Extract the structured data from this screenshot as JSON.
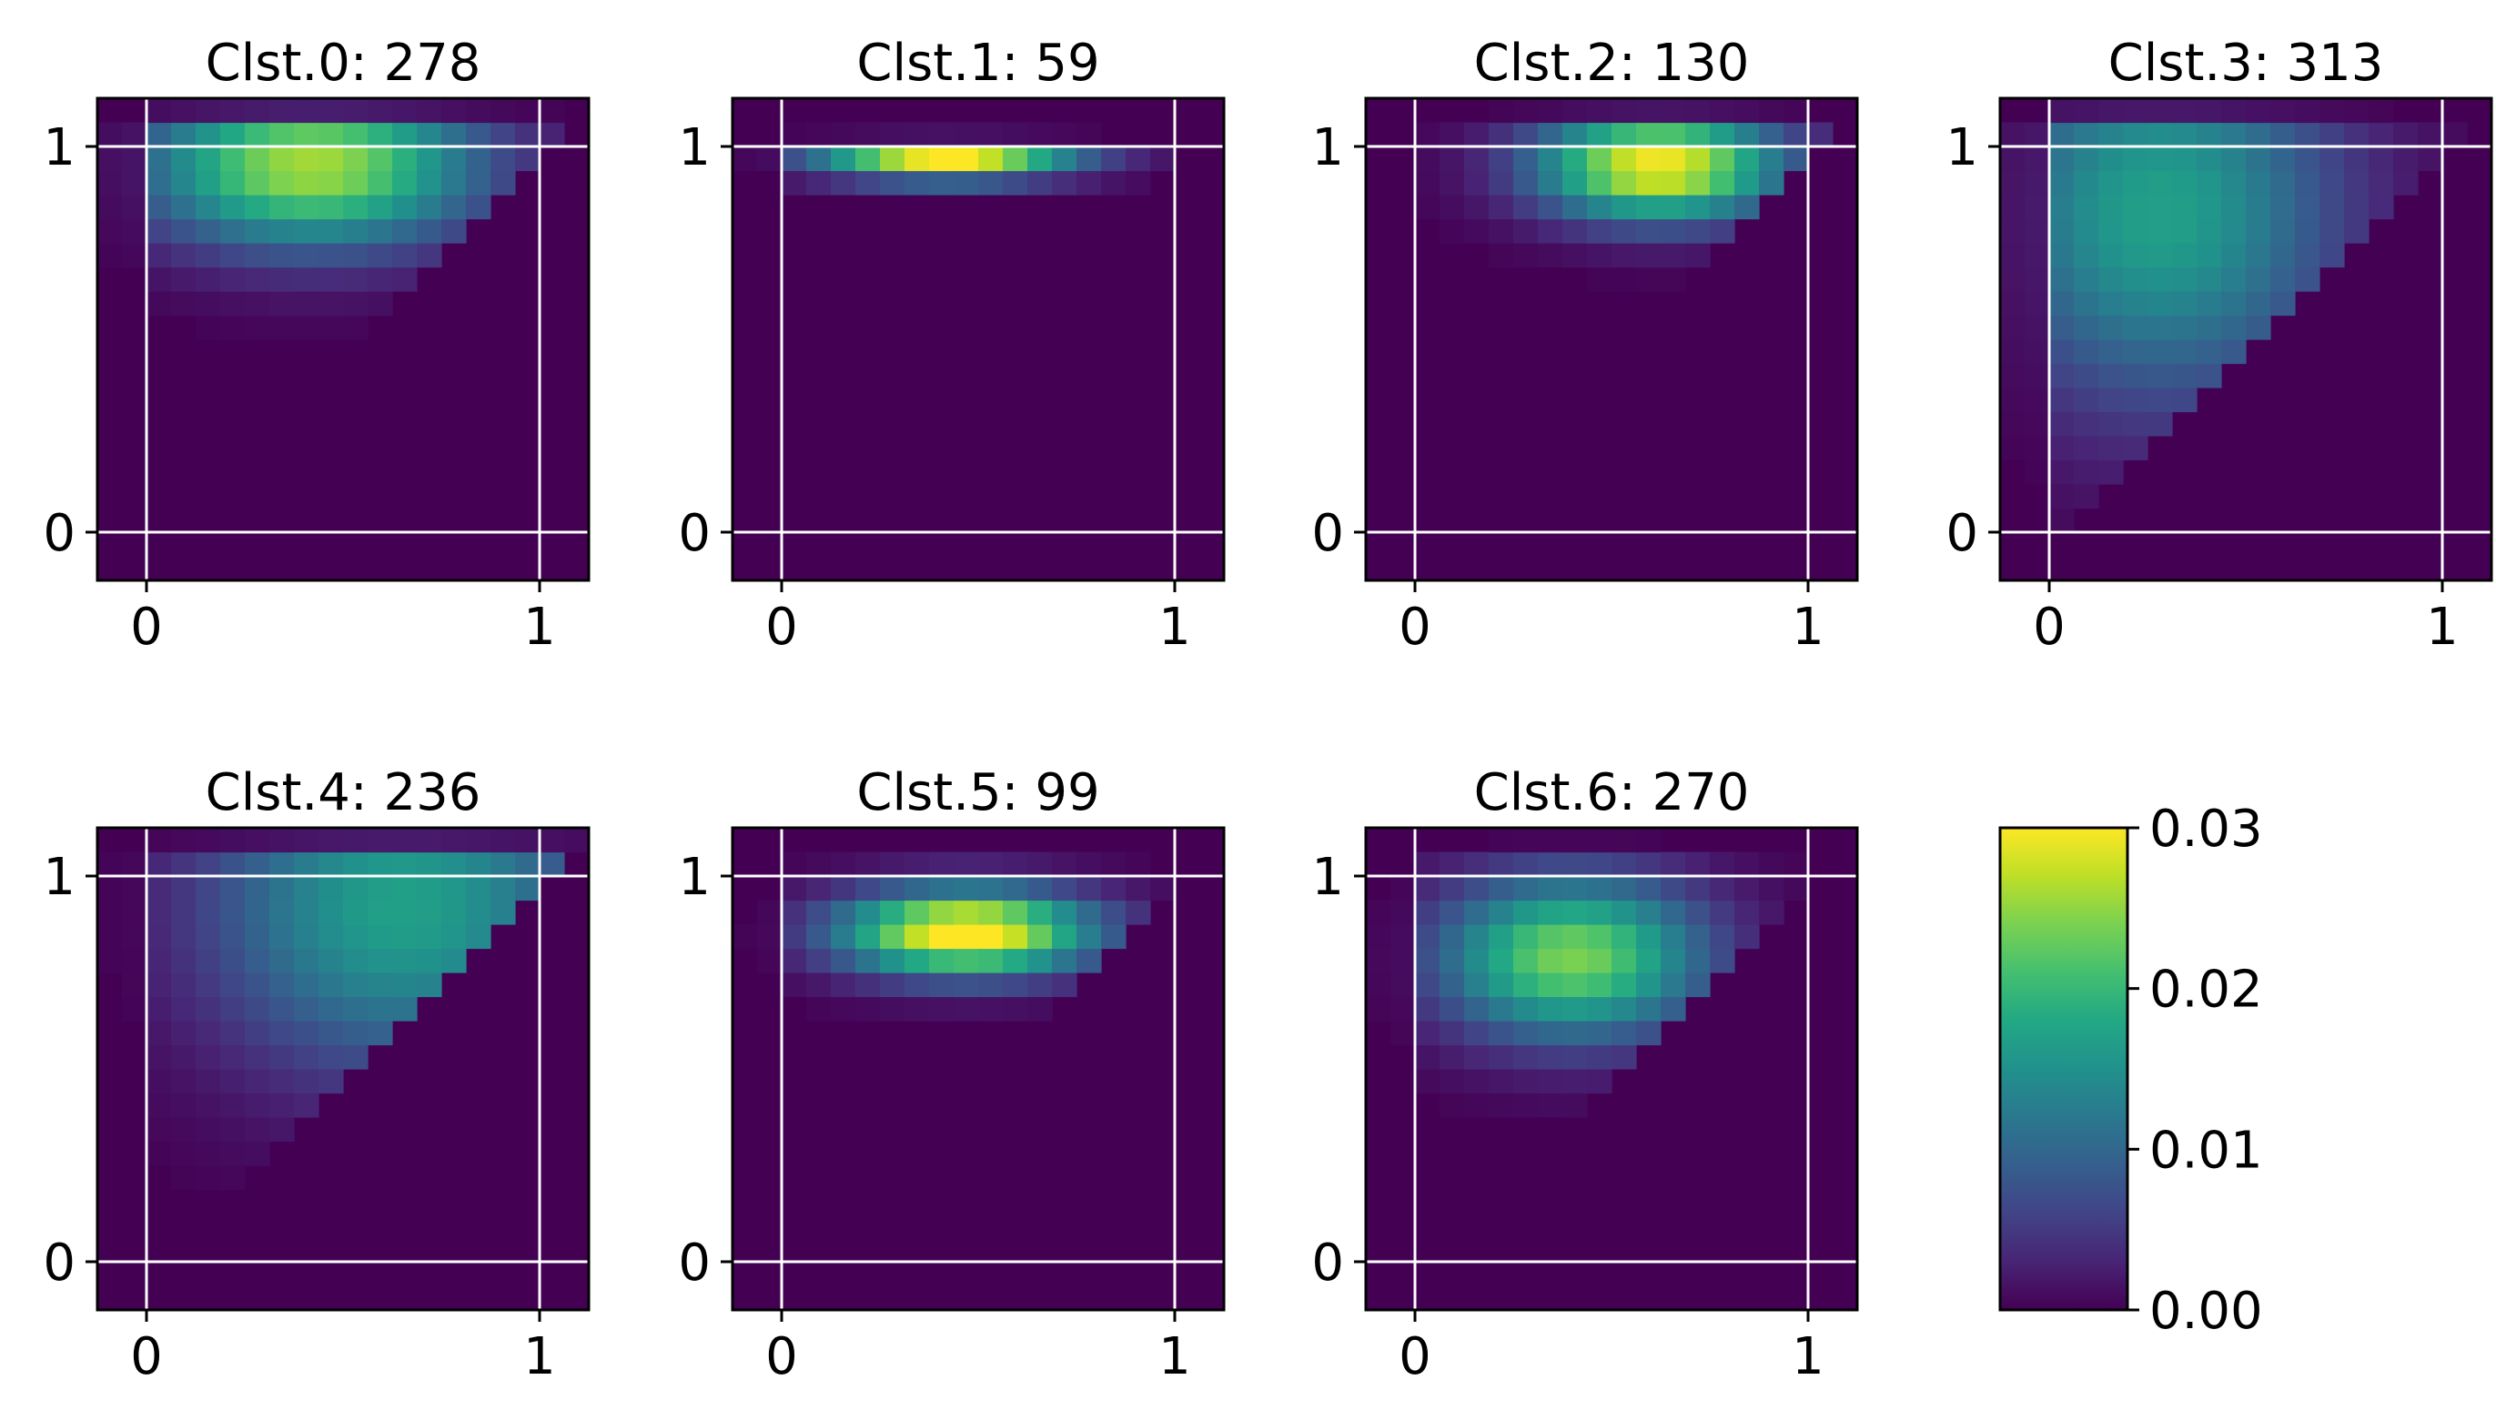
{
  "chart_data": {
    "type": "heatmap",
    "colormap": "viridis",
    "grid": true,
    "grid_lines_at": [
      0,
      1
    ],
    "xlim": [
      -0.125,
      1.125
    ],
    "ylim": [
      -0.125,
      1.125
    ],
    "bins": 20,
    "panels": [
      {
        "title": "Clst.0: 278",
        "cluster": 0,
        "count": 278,
        "peak": {
          "x": 0.42,
          "y": 0.95,
          "value": 0.026
        },
        "spread": {
          "x": 0.3,
          "y": 0.15
        }
      },
      {
        "title": "Clst.1: 59",
        "cluster": 1,
        "count": 59,
        "peak": {
          "x": 0.42,
          "y": 0.955,
          "value": 0.034
        },
        "spread": {
          "x": 0.23,
          "y": 0.03
        }
      },
      {
        "title": "Clst.2: 130",
        "cluster": 2,
        "count": 130,
        "peak": {
          "x": 0.62,
          "y": 0.95,
          "value": 0.03
        },
        "spread": {
          "x": 0.22,
          "y": 0.1
        }
      },
      {
        "title": "Clst.3: 313",
        "cluster": 3,
        "count": 313,
        "peak": {
          "x": 0.28,
          "y": 0.83,
          "value": 0.017
        },
        "spread": {
          "x": 0.32,
          "y": 0.35
        }
      },
      {
        "title": "Clst.4: 236",
        "cluster": 4,
        "count": 236,
        "peak": {
          "x": 0.65,
          "y": 0.92,
          "value": 0.017
        },
        "spread": {
          "x": 0.35,
          "y": 0.3
        }
      },
      {
        "title": "Clst.5: 99",
        "cluster": 5,
        "count": 99,
        "peak": {
          "x": 0.47,
          "y": 0.855,
          "value": 0.032
        },
        "spread": {
          "x": 0.23,
          "y": 0.08
        }
      },
      {
        "title": "Clst.6: 270",
        "cluster": 6,
        "count": 270,
        "peak": {
          "x": 0.4,
          "y": 0.79,
          "value": 0.024
        },
        "spread": {
          "x": 0.24,
          "y": 0.15
        }
      }
    ],
    "axis_ticks": {
      "x": [
        "0",
        "1"
      ],
      "y": [
        "0",
        "1"
      ]
    },
    "colorbar": {
      "range": [
        0,
        0.03
      ],
      "ticks": [
        "0.00",
        "0.01",
        "0.02",
        "0.03"
      ]
    }
  }
}
